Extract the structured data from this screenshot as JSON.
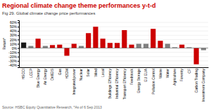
{
  "chart_data": {
    "type": "bar",
    "title": "Regional climate change theme performances y-t-d",
    "subtitle": "Fig 29. Global climate change price performances",
    "source": "Source: HSBC Equity Quantitative Research, *As of 6 Sep 2013",
    "ylabel": "Return*",
    "categories": [
      "HSCCI",
      "LCEP",
      "Blue Energy",
      "Air Energy",
      "DrillEIS",
      "Gas",
      "H2GM",
      "Integrated power",
      "Nuclear",
      "Solar",
      "Wind",
      "Local",
      "Buildings Efficiency",
      "Industrial Efficiency",
      "Transport Efficiency",
      "Feedstock",
      "Energy Storage",
      "EU EUA",
      "Pollution Control",
      "Waste",
      "Water",
      "Agriculture",
      "Forestry",
      "CF",
      "Carbon Trading",
      "Investment Company"
    ],
    "values": [
      13,
      5,
      22,
      5,
      7,
      8,
      -18,
      10,
      5,
      35,
      50,
      22,
      12,
      12,
      42,
      8,
      10,
      10,
      45,
      17,
      10,
      2,
      8,
      2,
      -38,
      -5
    ],
    "colors": [
      "#1a1a1a",
      "#808080",
      "#cc0000",
      "#808080",
      "#cc0000",
      "#cc0000",
      "#cc0000",
      "#cc0000",
      "#808080",
      "#cc0000",
      "#cc0000",
      "#cc0000",
      "#cc0000",
      "#cc0000",
      "#cc0000",
      "#cc0000",
      "#808080",
      "#808080",
      "#cc0000",
      "#cc0000",
      "#808080",
      "#808080",
      "#cc0000",
      "#808080",
      "#cc0000",
      "#808080"
    ],
    "ylim": [
      -45,
      65
    ],
    "yticks": [
      {
        "value": -40,
        "label": "-40%"
      },
      {
        "value": -30,
        "label": "-30%"
      },
      {
        "value": -20,
        "label": "-20%"
      },
      {
        "value": -10,
        "label": "-10%"
      },
      {
        "value": 0,
        "label": "0%"
      },
      {
        "value": 10,
        "label": "10%"
      },
      {
        "value": 20,
        "label": "20%"
      },
      {
        "value": 30,
        "label": "30%"
      },
      {
        "value": 40,
        "label": "40%"
      },
      {
        "value": 50,
        "label": "50%"
      },
      {
        "value": 60,
        "label": "60%"
      }
    ],
    "grid": true
  }
}
